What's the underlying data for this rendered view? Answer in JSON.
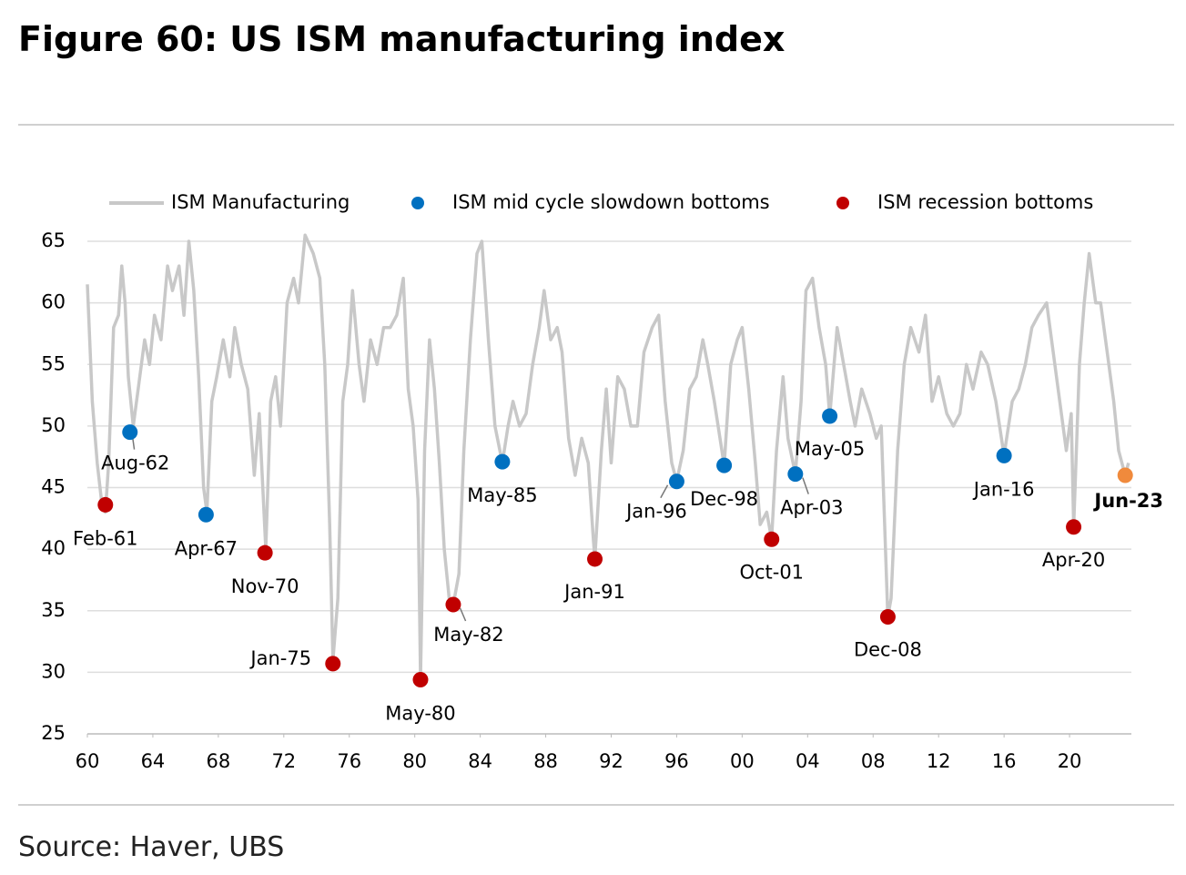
{
  "chart_data": {
    "type": "line",
    "title": "Figure 60: US ISM manufacturing index",
    "source": "Source: Haver, UBS",
    "legend": "top",
    "grid": true,
    "xlim": [
      1960,
      2024
    ],
    "ylim": [
      25,
      65
    ],
    "yticks": [
      25,
      30,
      35,
      40,
      45,
      50,
      55,
      60,
      65
    ],
    "xticks": [
      {
        "value": 1960,
        "label": "60"
      },
      {
        "value": 1964,
        "label": "64"
      },
      {
        "value": 1968,
        "label": "68"
      },
      {
        "value": 1972,
        "label": "72"
      },
      {
        "value": 1976,
        "label": "76"
      },
      {
        "value": 1980,
        "label": "80"
      },
      {
        "value": 1984,
        "label": "84"
      },
      {
        "value": 1988,
        "label": "88"
      },
      {
        "value": 1992,
        "label": "92"
      },
      {
        "value": 1996,
        "label": "96"
      },
      {
        "value": 2000,
        "label": "00"
      },
      {
        "value": 2004,
        "label": "04"
      },
      {
        "value": 2008,
        "label": "08"
      },
      {
        "value": 2012,
        "label": "12"
      },
      {
        "value": 2016,
        "label": "16"
      },
      {
        "value": 2020,
        "label": "20"
      }
    ],
    "series": [
      {
        "name": "ISM Manufacturing",
        "type": "line",
        "color": "#c8c8c8",
        "x": [
          1960.0,
          1960.3,
          1960.6,
          1960.9,
          1961.1,
          1961.3,
          1961.6,
          1961.9,
          1962.1,
          1962.3,
          1962.5,
          1962.8,
          1963.1,
          1963.5,
          1963.8,
          1964.1,
          1964.5,
          1964.9,
          1965.2,
          1965.6,
          1965.9,
          1966.2,
          1966.5,
          1966.8,
          1967.1,
          1967.3,
          1967.6,
          1967.9,
          1968.3,
          1968.7,
          1969.0,
          1969.4,
          1969.8,
          1970.2,
          1970.5,
          1970.9,
          1971.2,
          1971.5,
          1971.8,
          1972.2,
          1972.6,
          1972.9,
          1973.3,
          1973.8,
          1974.2,
          1974.5,
          1974.8,
          1975.0,
          1975.3,
          1975.6,
          1975.9,
          1976.2,
          1976.6,
          1976.9,
          1977.3,
          1977.7,
          1978.1,
          1978.5,
          1978.9,
          1979.3,
          1979.6,
          1979.9,
          1980.2,
          1980.35,
          1980.6,
          1980.9,
          1981.2,
          1981.5,
          1981.8,
          1982.1,
          1982.35,
          1982.7,
          1983.0,
          1983.4,
          1983.8,
          1984.1,
          1984.5,
          1984.9,
          1985.35,
          1985.7,
          1986.0,
          1986.4,
          1986.8,
          1987.2,
          1987.6,
          1987.9,
          1988.3,
          1988.7,
          1989.0,
          1989.4,
          1989.8,
          1990.2,
          1990.6,
          1990.9,
          1991.0,
          1991.4,
          1991.7,
          1992.0,
          1992.4,
          1992.8,
          1993.2,
          1993.6,
          1994.0,
          1994.5,
          1994.9,
          1995.3,
          1995.7,
          1996.0,
          1996.4,
          1996.8,
          1997.2,
          1997.6,
          1997.9,
          1998.3,
          1998.9,
          1999.3,
          1999.7,
          2000.0,
          2000.4,
          2000.8,
          2001.1,
          2001.5,
          2001.8,
          2002.1,
          2002.5,
          2002.8,
          2003.25,
          2003.6,
          2003.9,
          2004.3,
          2004.7,
          2005.1,
          2005.35,
          2005.8,
          2006.2,
          2006.6,
          2006.9,
          2007.3,
          2007.8,
          2008.2,
          2008.5,
          2008.9,
          2009.1,
          2009.5,
          2009.9,
          2010.3,
          2010.8,
          2011.2,
          2011.6,
          2012.0,
          2012.5,
          2012.9,
          2013.3,
          2013.7,
          2014.1,
          2014.6,
          2015.0,
          2015.5,
          2016.0,
          2016.5,
          2016.9,
          2017.3,
          2017.7,
          2018.1,
          2018.6,
          2018.9,
          2019.3,
          2019.8,
          2020.1,
          2020.25,
          2020.6,
          2020.9,
          2021.2,
          2021.6,
          2021.9,
          2022.3,
          2022.7,
          2023.0,
          2023.4,
          2023.6
        ],
        "values": [
          61.5,
          52,
          47,
          43.5,
          43,
          47,
          58,
          59,
          63,
          60,
          54,
          50,
          53,
          57,
          55,
          59,
          57,
          63,
          61,
          63,
          59,
          65,
          61,
          54,
          45,
          43,
          52,
          54,
          57,
          54,
          58,
          55,
          53,
          46,
          51,
          40,
          52,
          54,
          50,
          60,
          62,
          60,
          65.5,
          64,
          62,
          55,
          42,
          31,
          36,
          52,
          55,
          61,
          55,
          52,
          57,
          55,
          58,
          58,
          59,
          62,
          53,
          50,
          44,
          29.5,
          48,
          57,
          53,
          47,
          40,
          36,
          35.5,
          38,
          48,
          57,
          64,
          65,
          57,
          50,
          47,
          50,
          52,
          50,
          51,
          55,
          58,
          61,
          57,
          58,
          56,
          49,
          46,
          49,
          47,
          41,
          39.2,
          48,
          53,
          47,
          54,
          53,
          50,
          50,
          56,
          58,
          59,
          52,
          47,
          45.5,
          48,
          53,
          54,
          57,
          55,
          52,
          46.8,
          55,
          57,
          58,
          53,
          47,
          42,
          43,
          40.8,
          48,
          54,
          49,
          46.1,
          52,
          61,
          62,
          58,
          55,
          50.8,
          58,
          55,
          52,
          50,
          53,
          51,
          49,
          50,
          34.5,
          36,
          48,
          55,
          58,
          56,
          59,
          52,
          54,
          51,
          50,
          51,
          55,
          53,
          56,
          55,
          52,
          47.6,
          52,
          53,
          55,
          58,
          59,
          60,
          57,
          53,
          48,
          51,
          41.8,
          55,
          60,
          64,
          60,
          60,
          56,
          52,
          48,
          46,
          47
        ]
      },
      {
        "name": "ISM mid cycle slowdown bottoms",
        "type": "scatter",
        "color": "#0070c0",
        "x": [
          1962.6,
          1967.25,
          1985.35,
          1996.0,
          1998.9,
          2003.25,
          2005.35,
          2016.0
        ],
        "values": [
          49.5,
          42.8,
          47.1,
          45.5,
          46.8,
          46.1,
          50.8,
          47.6
        ],
        "labels": [
          "Aug-62",
          "Apr-67",
          "May-85",
          "Jan-96",
          "Dec-98",
          "Apr-03",
          "May-05",
          "Jan-16"
        ]
      },
      {
        "name": "ISM recession bottoms",
        "type": "scatter",
        "color": "#c00000",
        "x": [
          1961.1,
          1970.85,
          1975.0,
          1980.35,
          1982.35,
          1991.0,
          2001.8,
          2008.9,
          2020.25
        ],
        "values": [
          43.6,
          39.7,
          30.7,
          29.4,
          35.5,
          39.2,
          40.8,
          34.5,
          41.8
        ],
        "labels": [
          "Feb-61",
          "Nov-70",
          "Jan-75",
          "May-80",
          "May-82",
          "Jan-91",
          "Oct-01",
          "Dec-08",
          "Apr-20"
        ]
      }
    ],
    "annotations": [
      {
        "x": 2023.4,
        "value": 46,
        "label": "Jun-23",
        "color": "#f08a3c"
      }
    ]
  }
}
